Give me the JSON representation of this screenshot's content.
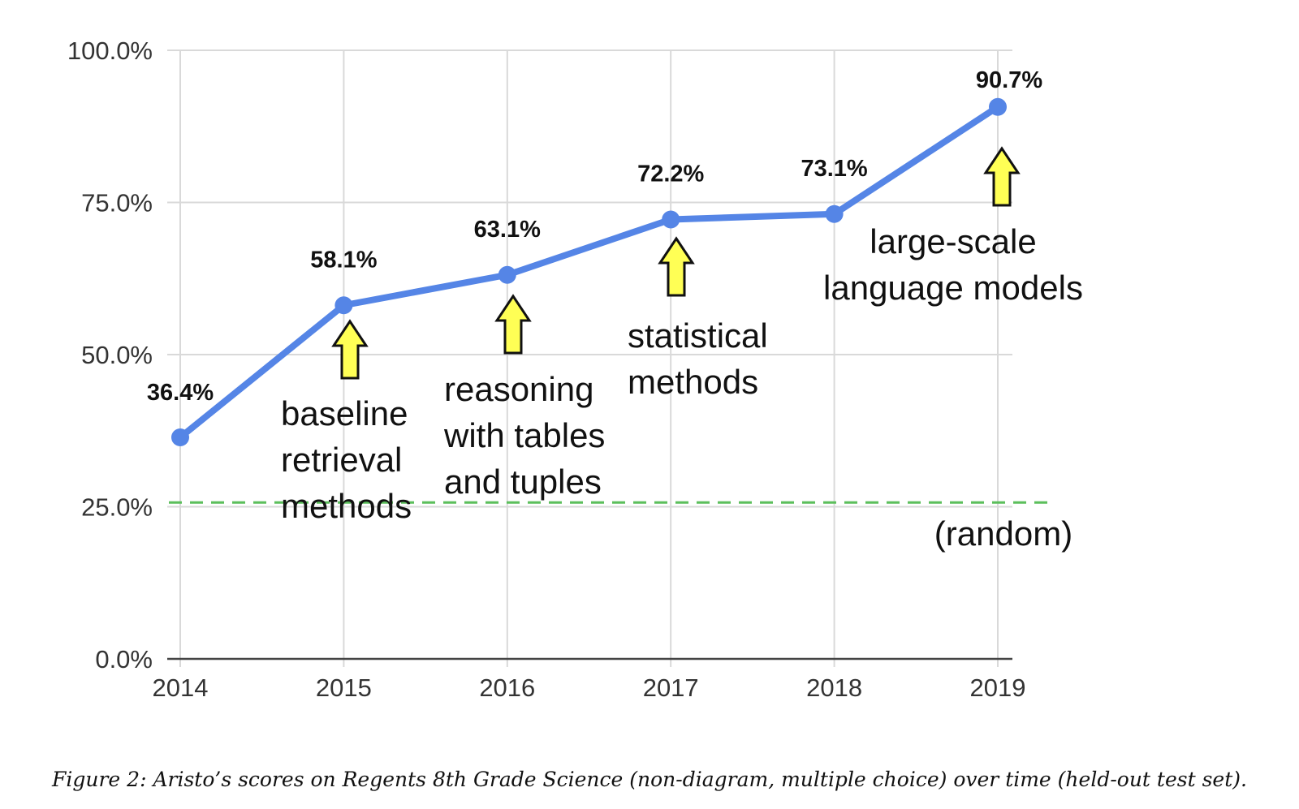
{
  "chart_data": {
    "type": "line",
    "x": [
      "2014",
      "2015",
      "2016",
      "2017",
      "2018",
      "2019"
    ],
    "series": [
      {
        "values": [
          36.4,
          58.1,
          63.1,
          72.2,
          73.1,
          90.7
        ]
      }
    ],
    "data_labels": [
      "36.4%",
      "58.1%",
      "63.1%",
      "72.2%",
      "73.1%",
      "90.7%"
    ],
    "yticks": [
      "0.0%",
      "25.0%",
      "50.0%",
      "75.0%",
      "100.0%"
    ],
    "ylim": [
      0,
      100
    ],
    "grid": true,
    "reference_line": {
      "value": 25.7,
      "label": "(random)",
      "color": "#5cbf5c"
    },
    "annotations": [
      {
        "x": "2015",
        "lines": [
          "baseline",
          "retrieval",
          "methods"
        ]
      },
      {
        "x": "2016",
        "lines": [
          "reasoning",
          "with tables",
          "and tuples"
        ]
      },
      {
        "x": "2017",
        "lines": [
          "statistical",
          "methods"
        ]
      },
      {
        "x": "2019",
        "lines": [
          "large-scale",
          "language models"
        ]
      }
    ],
    "colors": {
      "line": "#5585e6",
      "arrow_fill": "#ffff55",
      "grid": "#d9d9d9",
      "axis": "#444444"
    }
  },
  "caption": "Figure 2: Aristo’s scores on Regents 8th Grade Science (non-diagram, multiple choice) over time (held-out test set)."
}
